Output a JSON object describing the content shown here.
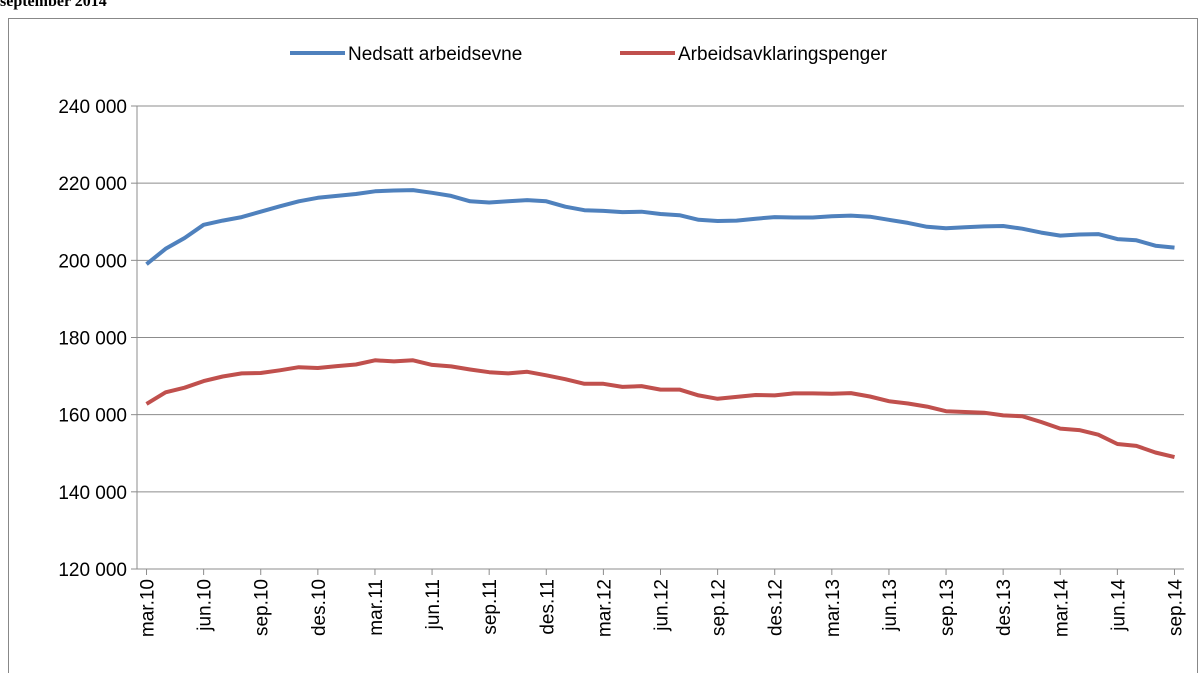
{
  "chart_data": {
    "type": "line",
    "title": "september 2014",
    "categories": [
      "mar.10",
      null,
      null,
      "jun.10",
      null,
      null,
      "sep.10",
      null,
      null,
      "des.10",
      null,
      null,
      "mar.11",
      null,
      null,
      "jun.11",
      null,
      null,
      "sep.11",
      null,
      null,
      "des.11",
      null,
      null,
      "mar.12",
      null,
      null,
      "jun.12",
      null,
      null,
      "sep.12",
      null,
      null,
      "des.12",
      null,
      null,
      "mar.13",
      null,
      null,
      "jun.13",
      null,
      null,
      "sep.13",
      null,
      null,
      "des.13",
      null,
      null,
      "mar.14",
      null,
      null,
      "jun.14",
      null,
      null,
      "sep.14"
    ],
    "series": [
      {
        "name": "Nedsatt arbeidsevne",
        "color": "#4f81bd",
        "values": [
          199000,
          203000,
          205800,
          209200,
          210300,
          211200,
          212600,
          214000,
          215300,
          216200,
          216700,
          217200,
          217900,
          218100,
          218200,
          217500,
          216700,
          215300,
          215000,
          215300,
          215600,
          215300,
          213900,
          213000,
          212800,
          212500,
          212600,
          212000,
          211700,
          210500,
          210200,
          210300,
          210800,
          211200,
          211100,
          211100,
          211400,
          211600,
          211300,
          210500,
          209700,
          208700,
          208300,
          208600,
          208800,
          208900,
          208200,
          207200,
          206400,
          206700,
          206800,
          205500,
          205200,
          203800,
          203300
        ]
      },
      {
        "name": "Arbeidsavklaringspenger",
        "color": "#c0504d",
        "values": [
          162800,
          165800,
          167000,
          168700,
          169900,
          170700,
          170800,
          171500,
          172300,
          172100,
          172600,
          173000,
          174100,
          173800,
          174100,
          172900,
          172500,
          171700,
          171000,
          170700,
          171100,
          170200,
          169200,
          168000,
          168000,
          167200,
          167400,
          166500,
          166500,
          165000,
          164100,
          164600,
          165100,
          165000,
          165500,
          165500,
          165400,
          165600,
          164700,
          163500,
          162900,
          162100,
          160900,
          160700,
          160500,
          159800,
          159600,
          158100,
          156400,
          156000,
          154800,
          152400,
          151900,
          150200,
          149000
        ]
      }
    ],
    "ylim": [
      120000,
      240000
    ],
    "yticks": [
      {
        "value": 120000,
        "label": "120 000"
      },
      {
        "value": 140000,
        "label": "140 000"
      },
      {
        "value": 160000,
        "label": "160 000"
      },
      {
        "value": 180000,
        "label": "180 000"
      },
      {
        "value": 200000,
        "label": "200 000"
      },
      {
        "value": 220000,
        "label": "220 000"
      },
      {
        "value": 240000,
        "label": "240 000"
      }
    ],
    "grid": true,
    "legend": "top"
  }
}
